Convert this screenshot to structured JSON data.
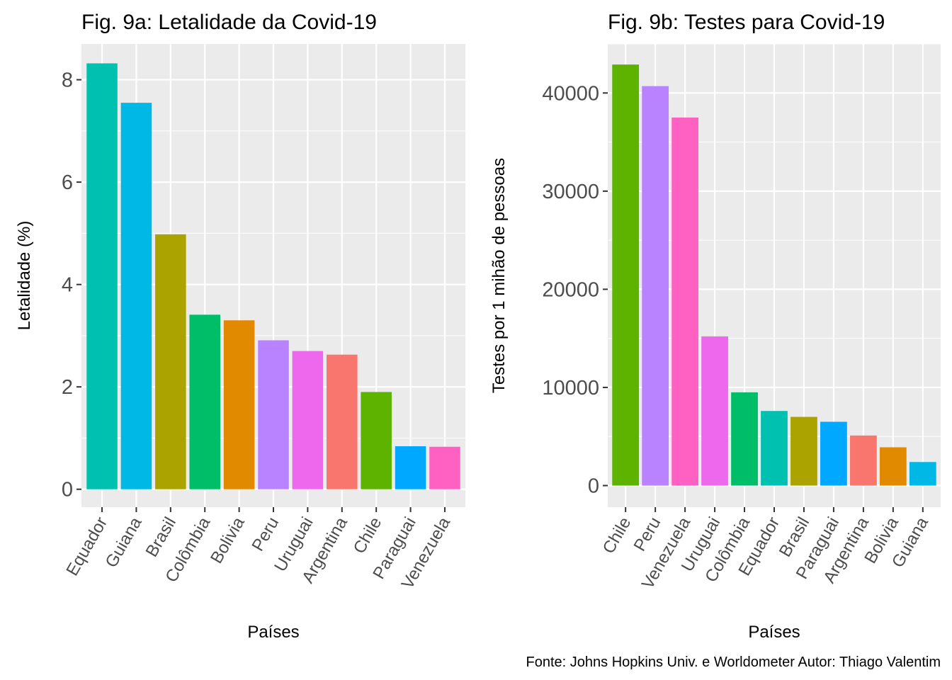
{
  "caption": "Fonte: Johns Hopkins Univ. e Worldometer   Autor: Thiago Valentim",
  "chart_data": [
    {
      "type": "bar",
      "title": "Fig. 9a: Letalidade da Covid-19",
      "xlabel": "Países",
      "ylabel": "Letalidade (%)",
      "ylim": [
        -0.35,
        8.7
      ],
      "yticks": [
        0,
        2,
        4,
        6,
        8
      ],
      "grid": true,
      "categories": [
        "Equador",
        "Guiana",
        "Brasil",
        "Colômbia",
        "Bolivia",
        "Peru",
        "Uruguai",
        "Argentina",
        "Chile",
        "Paraguai",
        "Venezuela"
      ],
      "values": [
        8.32,
        7.55,
        4.98,
        3.41,
        3.3,
        2.91,
        2.7,
        2.63,
        1.9,
        0.84,
        0.83
      ],
      "colors": [
        "#00C0AF",
        "#00B8E5",
        "#ABA300",
        "#00BE67",
        "#E18A00",
        "#B983FF",
        "#ED68ED",
        "#F8766D",
        "#5EB300",
        "#00A9FF",
        "#FF61C3"
      ]
    },
    {
      "type": "bar",
      "title": "Fig. 9b: Testes para Covid-19",
      "xlabel": "Países",
      "ylabel": "Testes por 1 mihão de pessoas",
      "ylim": [
        -2200,
        45000
      ],
      "yticks": [
        0,
        10000,
        20000,
        30000,
        40000
      ],
      "grid": true,
      "categories": [
        "Chile",
        "Peru",
        "Venezuela",
        "Uruguai",
        "Colômbia",
        "Equador",
        "Brasil",
        "Paraguai",
        "Argentina",
        "Bolivia",
        "Guiana"
      ],
      "values": [
        42900,
        40700,
        37500,
        15200,
        9500,
        7600,
        7000,
        6500,
        5100,
        3900,
        2400
      ],
      "colors": [
        "#5EB300",
        "#B983FF",
        "#FF61C3",
        "#ED68ED",
        "#00BE67",
        "#00C0AF",
        "#ABA300",
        "#00A9FF",
        "#F8766D",
        "#E18A00",
        "#00B8E5"
      ]
    }
  ]
}
